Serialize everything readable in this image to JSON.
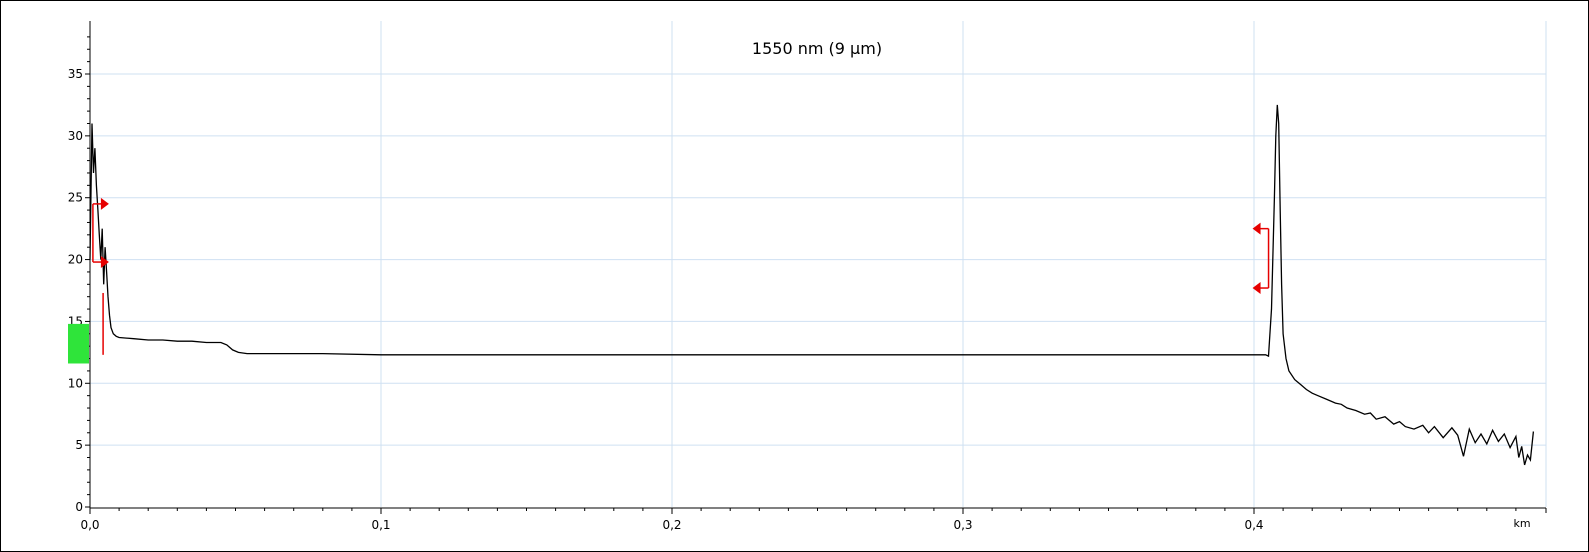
{
  "chart_data": {
    "type": "line",
    "title": "1550 nm (9 µm)",
    "xlabel": "",
    "ylabel": "",
    "x_unit_label": "km",
    "xlim": [
      0,
      0.5
    ],
    "ylim": [
      0,
      38.5
    ],
    "x_ticks": [
      {
        "value": 0,
        "label": "0,0"
      },
      {
        "value": 0.1,
        "label": "0,1"
      },
      {
        "value": 0.2,
        "label": "0,2"
      },
      {
        "value": 0.3,
        "label": "0,3"
      },
      {
        "value": 0.4,
        "label": "0,4"
      }
    ],
    "y_ticks": [
      {
        "value": 0,
        "label": "0"
      },
      {
        "value": 5,
        "label": "5"
      },
      {
        "value": 10,
        "label": "10"
      },
      {
        "value": 15,
        "label": "15"
      },
      {
        "value": 20,
        "label": "20"
      },
      {
        "value": 25,
        "label": "25"
      },
      {
        "value": 30,
        "label": "30"
      },
      {
        "value": 35,
        "label": "35"
      }
    ],
    "grid": true,
    "series": [
      {
        "color": "#000000",
        "points": [
          [
            0.0,
            20.0
          ],
          [
            0.0007,
            31.0
          ],
          [
            0.0012,
            27.0
          ],
          [
            0.0017,
            29.0
          ],
          [
            0.0022,
            26.0
          ],
          [
            0.0027,
            24.0
          ],
          [
            0.0032,
            22.0
          ],
          [
            0.0037,
            20.0
          ],
          [
            0.0042,
            22.5
          ],
          [
            0.0047,
            18.0
          ],
          [
            0.0052,
            21.0
          ],
          [
            0.0057,
            19.0
          ],
          [
            0.0062,
            17.0
          ],
          [
            0.0067,
            15.5
          ],
          [
            0.0072,
            14.5
          ],
          [
            0.008,
            14.0
          ],
          [
            0.009,
            13.8
          ],
          [
            0.01,
            13.7
          ],
          [
            0.015,
            13.6
          ],
          [
            0.02,
            13.5
          ],
          [
            0.025,
            13.5
          ],
          [
            0.03,
            13.4
          ],
          [
            0.035,
            13.4
          ],
          [
            0.04,
            13.3
          ],
          [
            0.045,
            13.3
          ],
          [
            0.047,
            13.1
          ],
          [
            0.049,
            12.7
          ],
          [
            0.051,
            12.5
          ],
          [
            0.054,
            12.4
          ],
          [
            0.06,
            12.4
          ],
          [
            0.08,
            12.4
          ],
          [
            0.1,
            12.3
          ],
          [
            0.15,
            12.3
          ],
          [
            0.2,
            12.3
          ],
          [
            0.25,
            12.3
          ],
          [
            0.3,
            12.3
          ],
          [
            0.35,
            12.3
          ],
          [
            0.38,
            12.3
          ],
          [
            0.4,
            12.3
          ],
          [
            0.404,
            12.3
          ],
          [
            0.405,
            12.2
          ],
          [
            0.406,
            16.0
          ],
          [
            0.407,
            25.0
          ],
          [
            0.4075,
            30.0
          ],
          [
            0.408,
            32.5
          ],
          [
            0.4085,
            31.0
          ],
          [
            0.409,
            24.0
          ],
          [
            0.4095,
            18.0
          ],
          [
            0.41,
            14.0
          ],
          [
            0.411,
            12.0
          ],
          [
            0.412,
            11.0
          ],
          [
            0.414,
            10.3
          ],
          [
            0.416,
            9.9
          ],
          [
            0.418,
            9.5
          ],
          [
            0.42,
            9.2
          ],
          [
            0.422,
            9.0
          ],
          [
            0.425,
            8.7
          ],
          [
            0.428,
            8.4
          ],
          [
            0.43,
            8.3
          ],
          [
            0.432,
            8.0
          ],
          [
            0.435,
            7.8
          ],
          [
            0.438,
            7.5
          ],
          [
            0.44,
            7.6
          ],
          [
            0.442,
            7.1
          ],
          [
            0.445,
            7.3
          ],
          [
            0.448,
            6.7
          ],
          [
            0.45,
            6.9
          ],
          [
            0.452,
            6.5
          ],
          [
            0.455,
            6.3
          ],
          [
            0.458,
            6.6
          ],
          [
            0.46,
            6.0
          ],
          [
            0.462,
            6.5
          ],
          [
            0.465,
            5.6
          ],
          [
            0.468,
            6.4
          ],
          [
            0.47,
            5.8
          ],
          [
            0.472,
            4.1
          ],
          [
            0.474,
            6.3
          ],
          [
            0.476,
            5.2
          ],
          [
            0.478,
            5.9
          ],
          [
            0.48,
            5.1
          ],
          [
            0.482,
            6.2
          ],
          [
            0.484,
            5.3
          ],
          [
            0.486,
            5.9
          ],
          [
            0.488,
            4.8
          ],
          [
            0.49,
            5.7
          ],
          [
            0.491,
            4.0
          ],
          [
            0.492,
            4.9
          ],
          [
            0.493,
            3.4
          ],
          [
            0.494,
            4.2
          ],
          [
            0.495,
            3.8
          ],
          [
            0.496,
            6.1
          ]
        ]
      }
    ],
    "event_markers": [
      {
        "type": "range",
        "x": 0.001,
        "y_top": 24.5,
        "y_bottom": 19.8,
        "color": "#e60000"
      },
      {
        "type": "range",
        "x": 0.405,
        "y_top": 22.5,
        "y_bottom": 17.7,
        "color": "#e60000"
      },
      {
        "type": "vline",
        "x": 0.0045,
        "y_top": 17.3,
        "y_bottom": 12.3,
        "color": "#e60000"
      }
    ],
    "launch_indicator": {
      "y_top": 14.8,
      "y_bottom": 11.6,
      "color": "#2fe43a"
    }
  }
}
